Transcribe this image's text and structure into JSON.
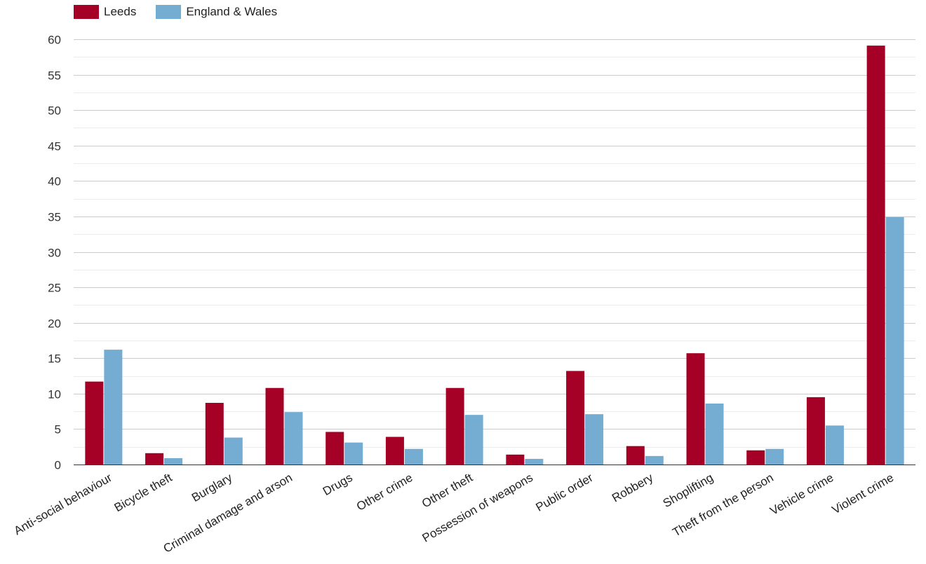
{
  "chart_data": {
    "type": "bar",
    "title": "",
    "xlabel": "",
    "ylabel": "",
    "ylim": [
      0,
      60
    ],
    "yticks": [
      0,
      5,
      10,
      15,
      20,
      25,
      30,
      35,
      40,
      45,
      50,
      55,
      60
    ],
    "grid": true,
    "legend_position": "top-left",
    "categories": [
      "Anti-social behaviour",
      "Bicycle theft",
      "Burglary",
      "Criminal damage and arson",
      "Drugs",
      "Other crime",
      "Other theft",
      "Possession of weapons",
      "Public order",
      "Robbery",
      "Shoplifting",
      "Theft from the person",
      "Vehicle crime",
      "Violent crime"
    ],
    "series": [
      {
        "name": "Leeds",
        "color": "#a50026",
        "values": [
          11.7,
          1.6,
          8.7,
          10.8,
          4.6,
          3.9,
          10.8,
          1.4,
          13.2,
          2.6,
          15.7,
          2.0,
          9.5,
          59.1
        ]
      },
      {
        "name": "England & Wales",
        "color": "#74add1",
        "values": [
          16.2,
          0.9,
          3.8,
          7.4,
          3.1,
          2.2,
          7.0,
          0.8,
          7.1,
          1.2,
          8.6,
          2.2,
          5.5,
          34.9
        ]
      }
    ]
  }
}
